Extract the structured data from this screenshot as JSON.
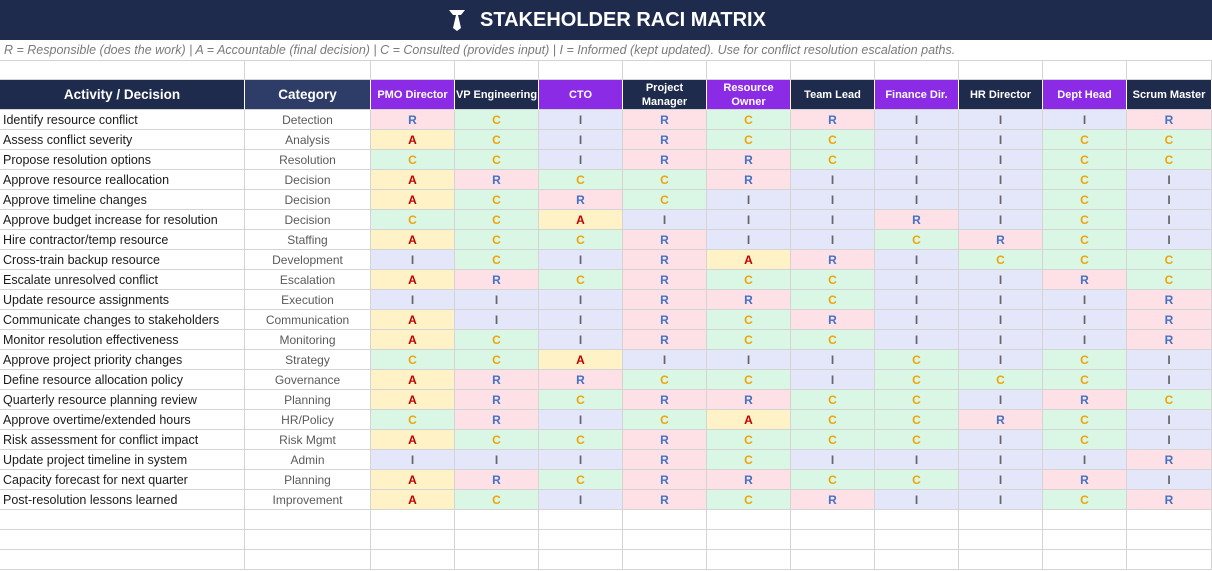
{
  "header": {
    "title": "STAKEHOLDER RACI MATRIX",
    "subtitle": "R = Responsible (does the work) | A = Accountable (final decision) | C = Consulted (provides input) | I = Informed (kept updated). Use for conflict resolution escalation paths."
  },
  "roles": {
    "R": {
      "fill": "#fde1e6",
      "color": "#4472c4"
    },
    "A": {
      "fill": "#fff2c6",
      "color": "#c00000"
    },
    "C": {
      "fill": "#daf6e4",
      "color": "#f0a30a"
    },
    "I": {
      "fill": "#e4e6fa",
      "color": "#666666"
    }
  },
  "table": {
    "columns": [
      "Activity / Decision",
      "Category",
      "PMO Director",
      "VP Engineering",
      "CTO",
      "Project Manager",
      "Resource Owner",
      "Team Lead",
      "Finance Dir.",
      "HR Director",
      "Dept Head",
      "Scrum Master"
    ],
    "rows": [
      [
        "Identify resource conflict",
        "Detection",
        "R",
        "C",
        "I",
        "R",
        "C",
        "R",
        "I",
        "I",
        "I",
        "R"
      ],
      [
        "Assess conflict severity",
        "Analysis",
        "A",
        "C",
        "I",
        "R",
        "C",
        "C",
        "I",
        "I",
        "C",
        "C"
      ],
      [
        "Propose resolution options",
        "Resolution",
        "C",
        "C",
        "I",
        "R",
        "R",
        "C",
        "I",
        "I",
        "C",
        "C"
      ],
      [
        "Approve resource reallocation",
        "Decision",
        "A",
        "R",
        "C",
        "C",
        "R",
        "I",
        "I",
        "I",
        "C",
        "I"
      ],
      [
        "Approve timeline changes",
        "Decision",
        "A",
        "C",
        "R",
        "C",
        "I",
        "I",
        "I",
        "I",
        "C",
        "I"
      ],
      [
        "Approve budget increase for resolution",
        "Decision",
        "C",
        "C",
        "A",
        "I",
        "I",
        "I",
        "R",
        "I",
        "C",
        "I"
      ],
      [
        "Hire contractor/temp resource",
        "Staffing",
        "A",
        "C",
        "C",
        "R",
        "I",
        "I",
        "C",
        "R",
        "C",
        "I"
      ],
      [
        "Cross-train backup resource",
        "Development",
        "I",
        "C",
        "I",
        "R",
        "A",
        "R",
        "I",
        "C",
        "C",
        "C"
      ],
      [
        "Escalate unresolved conflict",
        "Escalation",
        "A",
        "R",
        "C",
        "R",
        "C",
        "C",
        "I",
        "I",
        "R",
        "C"
      ],
      [
        "Update resource assignments",
        "Execution",
        "I",
        "I",
        "I",
        "R",
        "R",
        "C",
        "I",
        "I",
        "I",
        "R"
      ],
      [
        "Communicate changes to stakeholders",
        "Communication",
        "A",
        "I",
        "I",
        "R",
        "C",
        "R",
        "I",
        "I",
        "I",
        "R"
      ],
      [
        "Monitor resolution effectiveness",
        "Monitoring",
        "A",
        "C",
        "I",
        "R",
        "C",
        "C",
        "I",
        "I",
        "I",
        "R"
      ],
      [
        "Approve project priority changes",
        "Strategy",
        "C",
        "C",
        "A",
        "I",
        "I",
        "I",
        "C",
        "I",
        "C",
        "I"
      ],
      [
        "Define resource allocation policy",
        "Governance",
        "A",
        "R",
        "R",
        "C",
        "C",
        "I",
        "C",
        "C",
        "C",
        "I"
      ],
      [
        "Quarterly resource planning review",
        "Planning",
        "A",
        "R",
        "C",
        "R",
        "R",
        "C",
        "C",
        "I",
        "R",
        "C"
      ],
      [
        "Approve overtime/extended hours",
        "HR/Policy",
        "C",
        "R",
        "I",
        "C",
        "A",
        "C",
        "C",
        "R",
        "C",
        "I"
      ],
      [
        "Risk assessment for conflict impact",
        "Risk Mgmt",
        "A",
        "C",
        "C",
        "R",
        "C",
        "C",
        "C",
        "I",
        "C",
        "I"
      ],
      [
        "Update project timeline in system",
        "Admin",
        "I",
        "I",
        "I",
        "R",
        "C",
        "I",
        "I",
        "I",
        "I",
        "R"
      ],
      [
        "Capacity forecast for next quarter",
        "Planning",
        "A",
        "R",
        "C",
        "R",
        "R",
        "C",
        "C",
        "I",
        "R",
        "I"
      ],
      [
        "Post-resolution lessons learned",
        "Improvement",
        "A",
        "C",
        "I",
        "R",
        "C",
        "R",
        "I",
        "I",
        "C",
        "R"
      ]
    ]
  }
}
